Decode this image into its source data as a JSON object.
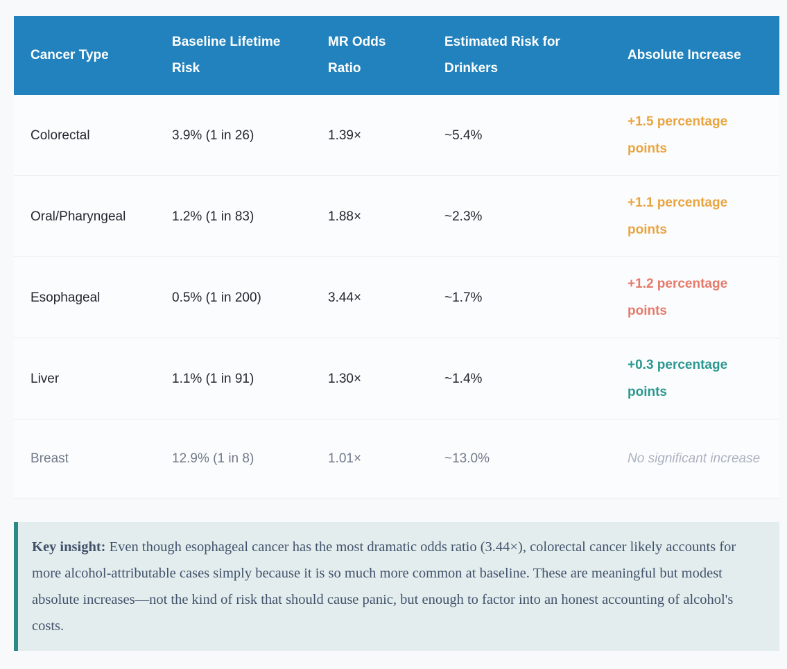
{
  "page": {
    "background": "#f8f9fa"
  },
  "table": {
    "header_bg": "#2182bd",
    "header_text_color": "#ffffff",
    "columns": [
      "Cancer Type",
      "Baseline Lifetime Risk",
      "MR Odds Ratio",
      "Estimated Risk for Drinkers",
      "Absolute Increase"
    ],
    "rows": [
      {
        "cancer_type": "Colorectal",
        "baseline_lifetime_risk": "3.9% (1 in 26)",
        "mr_odds_ratio": "1.39×",
        "estimated_risk_for_drinkers": "~5.4%",
        "absolute_increase": "+1.5 percentage points",
        "increase_color": "#e9a440",
        "increase_style": "bold",
        "row_muted": false
      },
      {
        "cancer_type": "Oral/Pharyngeal",
        "baseline_lifetime_risk": "1.2% (1 in 83)",
        "mr_odds_ratio": "1.88×",
        "estimated_risk_for_drinkers": "~2.3%",
        "absolute_increase": "+1.1 percentage points",
        "increase_color": "#e9a440",
        "increase_style": "bold",
        "row_muted": false
      },
      {
        "cancer_type": "Esophageal",
        "baseline_lifetime_risk": "0.5% (1 in 200)",
        "mr_odds_ratio": "3.44×",
        "estimated_risk_for_drinkers": "~1.7%",
        "absolute_increase": "+1.2 percentage points",
        "increase_color": "#e5796a",
        "increase_style": "bold",
        "row_muted": false
      },
      {
        "cancer_type": "Liver",
        "baseline_lifetime_risk": "1.1% (1 in 91)",
        "mr_odds_ratio": "1.30×",
        "estimated_risk_for_drinkers": "~1.4%",
        "absolute_increase": "+0.3 percentage points",
        "increase_color": "#2a9790",
        "increase_style": "bold",
        "row_muted": false
      },
      {
        "cancer_type": "Breast",
        "baseline_lifetime_risk": "12.9% (1 in 8)",
        "mr_odds_ratio": "1.01×",
        "estimated_risk_for_drinkers": "~13.0%",
        "absolute_increase": "No significant increase",
        "increase_color": "#abb2bf",
        "increase_style": "italic",
        "row_muted": true
      }
    ]
  },
  "insight": {
    "label": "Key insight:",
    "text": " Even though esophageal cancer has the most dramatic odds ratio (3.44×), colorectal cancer likely accounts for more alcohol-attributable cases simply because it is so much more common at baseline. These are meaningful but modest absolute increases—not the kind of risk that should cause panic, but enough to factor into an honest accounting of alcohol's costs.",
    "accent_color": "#2b8b84",
    "background": "#e3edee",
    "text_color": "#42526b"
  }
}
